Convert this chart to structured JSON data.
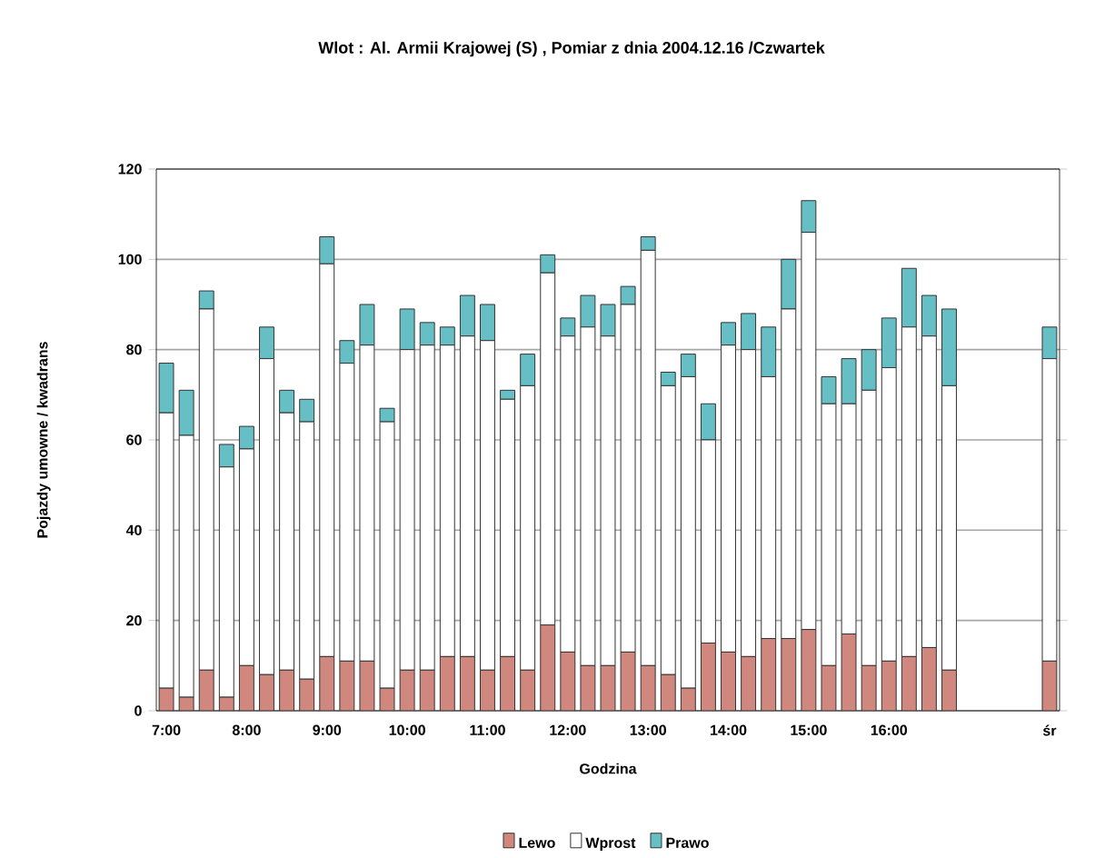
{
  "chart_data": {
    "type": "bar",
    "stacked": true,
    "title": "Wlot : Al. Armii Krajowej (S) , Pomiar z dnia 2004.12.16 /Czwartek",
    "xlabel": "Godzina",
    "ylabel": "Pojazdy umowne / kwadrans",
    "categories": [
      "7:00",
      null,
      null,
      null,
      "8:00",
      null,
      null,
      null,
      "9:00",
      null,
      null,
      null,
      "10:00",
      null,
      null,
      null,
      "11:00",
      null,
      null,
      null,
      "12:00",
      null,
      null,
      null,
      "13:00",
      null,
      null,
      null,
      "14:00",
      null,
      null,
      null,
      "15:00",
      null,
      null,
      null,
      "16:00",
      null,
      null,
      null,
      null,
      null,
      null,
      null,
      "śr"
    ],
    "series": [
      {
        "name": "Lewo",
        "color": "#d0877e",
        "values": [
          5,
          3,
          9,
          3,
          10,
          8,
          9,
          7,
          12,
          11,
          11,
          5,
          9,
          9,
          12,
          12,
          9,
          12,
          9,
          19,
          13,
          10,
          10,
          13,
          10,
          8,
          5,
          15,
          13,
          12,
          16,
          16,
          18,
          10,
          17,
          10,
          11,
          12,
          14,
          9,
          null,
          null,
          null,
          null,
          11
        ]
      },
      {
        "name": "Wprost",
        "color": "#ffffff",
        "values": [
          61,
          58,
          80,
          51,
          48,
          70,
          57,
          57,
          87,
          66,
          70,
          59,
          71,
          72,
          69,
          71,
          73,
          57,
          63,
          78,
          70,
          75,
          73,
          77,
          92,
          64,
          69,
          45,
          68,
          68,
          58,
          73,
          88,
          58,
          51,
          61,
          65,
          73,
          69,
          63,
          null,
          null,
          null,
          null,
          67
        ]
      },
      {
        "name": "Prawo",
        "color": "#66bfc4",
        "values": [
          11,
          10,
          4,
          5,
          5,
          7,
          5,
          5,
          6,
          5,
          9,
          3,
          9,
          5,
          4,
          9,
          8,
          2,
          7,
          4,
          4,
          7,
          7,
          4,
          3,
          3,
          5,
          8,
          5,
          8,
          11,
          11,
          7,
          6,
          10,
          9,
          11,
          13,
          9,
          17,
          null,
          null,
          null,
          null,
          7
        ]
      }
    ],
    "ylim": [
      0,
      120
    ],
    "yticks": [
      0,
      20,
      40,
      60,
      80,
      100,
      120
    ],
    "grid": "y",
    "legend": "bottom"
  }
}
